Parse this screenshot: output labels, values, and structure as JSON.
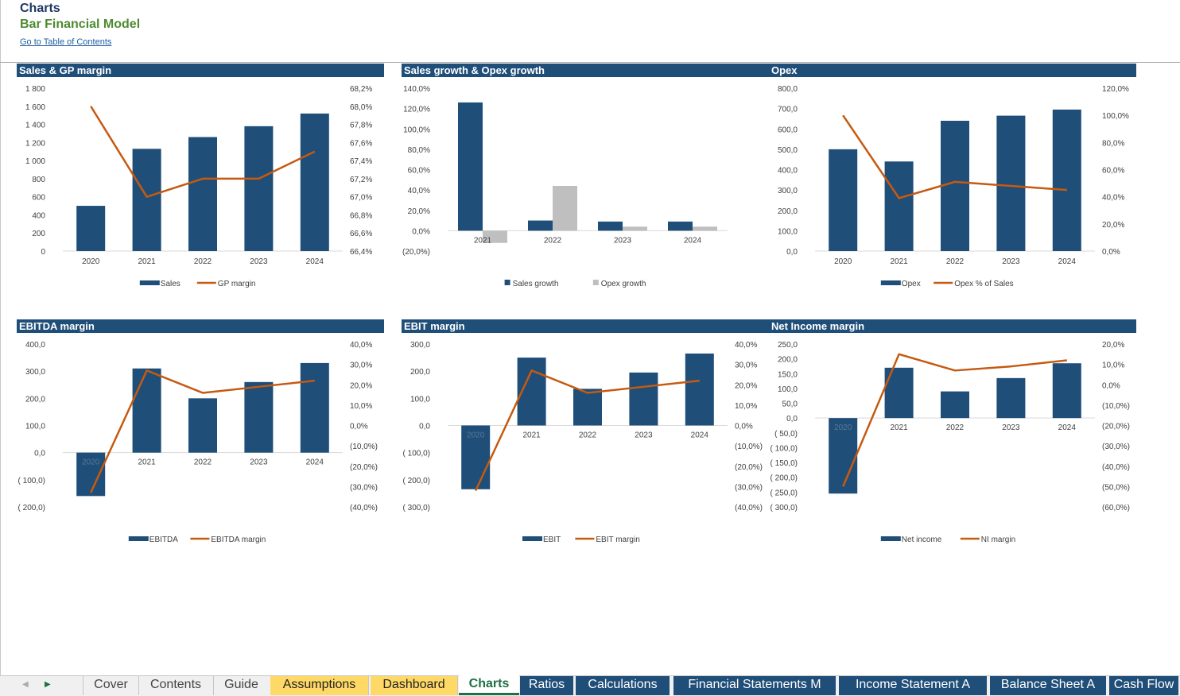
{
  "header": {
    "title": "Charts",
    "subtitle": "Bar  Financial Model",
    "link": "Go to Table of Contents"
  },
  "colors": {
    "bar": "#1f4e79",
    "line": "#c55a11",
    "bar2": "#bfbfbf"
  },
  "charts": [
    {
      "id": "sales",
      "title": "Sales & GP margin",
      "categories": [
        "2020",
        "2021",
        "2022",
        "2023",
        "2024"
      ],
      "left_ticks": [
        "1 800",
        "1 600",
        "1 400",
        "1 200",
        "1 000",
        "800",
        "600",
        "400",
        "200",
        "0"
      ],
      "right_ticks": [
        "68,2%",
        "68,0%",
        "67,8%",
        "67,6%",
        "67,4%",
        "67,2%",
        "67,0%",
        "66,8%",
        "66,6%",
        "66,4%"
      ],
      "legend": [
        "Sales",
        "GP margin"
      ]
    },
    {
      "id": "growth",
      "title": "Sales growth & Opex growth",
      "categories": [
        "2021",
        "2022",
        "2023",
        "2024"
      ],
      "left_ticks": [
        "140,0%",
        "120,0%",
        "100,0%",
        "80,0%",
        "60,0%",
        "40,0%",
        "20,0%",
        "0,0%",
        "(20,0%)"
      ],
      "right_ticks": [],
      "legend": [
        "Sales growth",
        "Opex growth"
      ]
    },
    {
      "id": "opex",
      "title": "Opex",
      "categories": [
        "2020",
        "2021",
        "2022",
        "2023",
        "2024"
      ],
      "left_ticks": [
        "800,0",
        "700,0",
        "600,0",
        "500,0",
        "400,0",
        "300,0",
        "200,0",
        "100,0",
        "0,0"
      ],
      "right_ticks": [
        "120,0%",
        "100,0%",
        "80,0%",
        "60,0%",
        "40,0%",
        "20,0%",
        "0,0%"
      ],
      "legend": [
        "Opex",
        "Opex % of Sales"
      ]
    },
    {
      "id": "ebitda",
      "title": "EBITDA margin",
      "categories": [
        "2020",
        "2021",
        "2022",
        "2023",
        "2024"
      ],
      "left_ticks": [
        "400,0",
        "300,0",
        "200,0",
        "100,0",
        "0,0",
        "( 100,0)",
        "( 200,0)"
      ],
      "right_ticks": [
        "40,0%",
        "30,0%",
        "20,0%",
        "10,0%",
        "0,0%",
        "(10,0%)",
        "(20,0%)",
        "(30,0%)",
        "(40,0%)"
      ],
      "legend": [
        "EBITDA",
        "EBITDA margin"
      ]
    },
    {
      "id": "ebit",
      "title": "EBIT margin",
      "categories": [
        "2020",
        "2021",
        "2022",
        "2023",
        "2024"
      ],
      "left_ticks": [
        "300,0",
        "200,0",
        "100,0",
        "0,0",
        "( 100,0)",
        "( 200,0)",
        "( 300,0)"
      ],
      "right_ticks": [
        "40,0%",
        "30,0%",
        "20,0%",
        "10,0%",
        "0,0%",
        "(10,0%)",
        "(20,0%)",
        "(30,0%)",
        "(40,0%)"
      ],
      "legend": [
        "EBIT",
        "EBIT margin"
      ]
    },
    {
      "id": "ni",
      "title": "Net Income margin",
      "categories": [
        "2020",
        "2021",
        "2022",
        "2023",
        "2024"
      ],
      "left_ticks": [
        "250,0",
        "200,0",
        "150,0",
        "100,0",
        "50,0",
        "0,0",
        "( 50,0)",
        "( 100,0)",
        "( 150,0)",
        "( 200,0)",
        "( 250,0)",
        "( 300,0)"
      ],
      "right_ticks": [
        "20,0%",
        "10,0%",
        "0,0%",
        "(10,0%)",
        "(20,0%)",
        "(30,0%)",
        "(40,0%)",
        "(50,0%)",
        "(60,0%)"
      ],
      "legend": [
        "Net income",
        "NI margin"
      ]
    }
  ],
  "chart_data": [
    {
      "type": "bar",
      "title": "Sales & GP margin",
      "categories": [
        "2020",
        "2021",
        "2022",
        "2023",
        "2024"
      ],
      "ylim": [
        0,
        1800
      ],
      "y2lim": [
        66.4,
        68.2
      ],
      "series": [
        {
          "name": "Sales",
          "kind": "bar",
          "axis": "left",
          "values": [
            500,
            1130,
            1260,
            1380,
            1520
          ]
        },
        {
          "name": "GP margin",
          "kind": "line",
          "axis": "right",
          "values": [
            68.0,
            67.0,
            67.2,
            67.2,
            67.5
          ]
        }
      ]
    },
    {
      "type": "bar",
      "title": "Sales growth & Opex growth",
      "categories": [
        "2021",
        "2022",
        "2023",
        "2024"
      ],
      "ylim": [
        -20,
        140
      ],
      "series": [
        {
          "name": "Sales growth",
          "kind": "bar",
          "axis": "left",
          "values": [
            126,
            10,
            9,
            9
          ]
        },
        {
          "name": "Opex growth",
          "kind": "bar2",
          "axis": "left",
          "values": [
            -12,
            44,
            4,
            4
          ]
        }
      ]
    },
    {
      "type": "bar",
      "title": "Opex",
      "categories": [
        "2020",
        "2021",
        "2022",
        "2023",
        "2024"
      ],
      "ylim": [
        0,
        800
      ],
      "y2lim": [
        0,
        120
      ],
      "series": [
        {
          "name": "Opex",
          "kind": "bar",
          "axis": "left",
          "values": [
            500,
            440,
            640,
            665,
            695
          ]
        },
        {
          "name": "Opex % of Sales",
          "kind": "line",
          "axis": "right",
          "values": [
            100,
            39,
            51,
            48,
            45
          ]
        }
      ]
    },
    {
      "type": "bar",
      "title": "EBITDA margin",
      "categories": [
        "2020",
        "2021",
        "2022",
        "2023",
        "2024"
      ],
      "ylim": [
        -200,
        400
      ],
      "y2lim": [
        -40,
        40
      ],
      "series": [
        {
          "name": "EBITDA",
          "kind": "bar",
          "axis": "left",
          "values": [
            -160,
            310,
            200,
            260,
            330
          ]
        },
        {
          "name": "EBITDA margin",
          "kind": "line",
          "axis": "right",
          "values": [
            -33,
            27,
            16,
            19,
            22
          ]
        }
      ]
    },
    {
      "type": "bar",
      "title": "EBIT margin",
      "categories": [
        "2020",
        "2021",
        "2022",
        "2023",
        "2024"
      ],
      "ylim": [
        -300,
        300
      ],
      "y2lim": [
        -40,
        40
      ],
      "series": [
        {
          "name": "EBIT",
          "kind": "bar",
          "axis": "left",
          "values": [
            -235,
            250,
            135,
            195,
            265
          ]
        },
        {
          "name": "EBIT margin",
          "kind": "line",
          "axis": "right",
          "values": [
            -32,
            27,
            16,
            19,
            22
          ]
        }
      ]
    },
    {
      "type": "bar",
      "title": "Net Income margin",
      "categories": [
        "2020",
        "2021",
        "2022",
        "2023",
        "2024"
      ],
      "ylim": [
        -300,
        250
      ],
      "y2lim": [
        -60,
        20
      ],
      "series": [
        {
          "name": "Net income",
          "kind": "bar",
          "axis": "left",
          "values": [
            -255,
            170,
            90,
            135,
            185
          ]
        },
        {
          "name": "NI margin",
          "kind": "line",
          "axis": "right",
          "values": [
            -50,
            15,
            7,
            9,
            12
          ]
        }
      ]
    }
  ],
  "tabs": [
    {
      "label": "Cover",
      "style": "plain"
    },
    {
      "label": "Contents",
      "style": "plain"
    },
    {
      "label": "Guide",
      "style": "plain"
    },
    {
      "label": "Assumptions",
      "style": "yellow"
    },
    {
      "label": "Dashboard",
      "style": "yellow"
    },
    {
      "label": "Charts",
      "style": "active"
    },
    {
      "label": "Ratios",
      "style": "blue"
    },
    {
      "label": "Calculations",
      "style": "blue"
    },
    {
      "label": "Financial Statements M",
      "style": "blue"
    },
    {
      "label": "Income Statement A",
      "style": "blue"
    },
    {
      "label": "Balance Sheet A",
      "style": "blue"
    },
    {
      "label": "Cash Flow",
      "style": "blue"
    }
  ]
}
